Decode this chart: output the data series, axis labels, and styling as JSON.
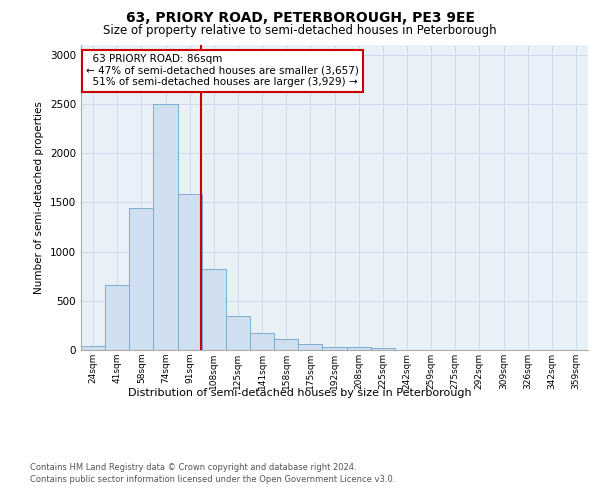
{
  "title1": "63, PRIORY ROAD, PETERBOROUGH, PE3 9EE",
  "title2": "Size of property relative to semi-detached houses in Peterborough",
  "xlabel": "Distribution of semi-detached houses by size in Peterborough",
  "ylabel": "Number of semi-detached properties",
  "categories": [
    "24sqm",
    "41sqm",
    "58sqm",
    "74sqm",
    "91sqm",
    "108sqm",
    "125sqm",
    "141sqm",
    "158sqm",
    "175sqm",
    "192sqm",
    "208sqm",
    "225sqm",
    "242sqm",
    "259sqm",
    "275sqm",
    "292sqm",
    "309sqm",
    "326sqm",
    "342sqm",
    "359sqm"
  ],
  "values": [
    45,
    660,
    1440,
    2500,
    1590,
    820,
    350,
    175,
    115,
    60,
    35,
    30,
    20,
    0,
    0,
    0,
    0,
    0,
    0,
    0,
    0
  ],
  "bar_color": "#cfdff0",
  "bar_edge_color": "#7bafd4",
  "vline_x": 4.47,
  "annotation_box_color": "#ffffff",
  "annotation_box_edge": "#cc0000",
  "vline_color": "#cc0000",
  "grid_color": "#d0d8e8",
  "bg_color": "#e8f0f8",
  "ylim": [
    0,
    3100
  ],
  "yticks": [
    0,
    500,
    1000,
    1500,
    2000,
    2500,
    3000
  ],
  "property_label": "63 PRIORY ROAD: 86sqm",
  "pct_smaller": 47,
  "count_smaller": 3657,
  "pct_larger": 51,
  "count_larger": 3929,
  "footer1": "Contains HM Land Registry data © Crown copyright and database right 2024.",
  "footer2": "Contains public sector information licensed under the Open Government Licence v3.0."
}
